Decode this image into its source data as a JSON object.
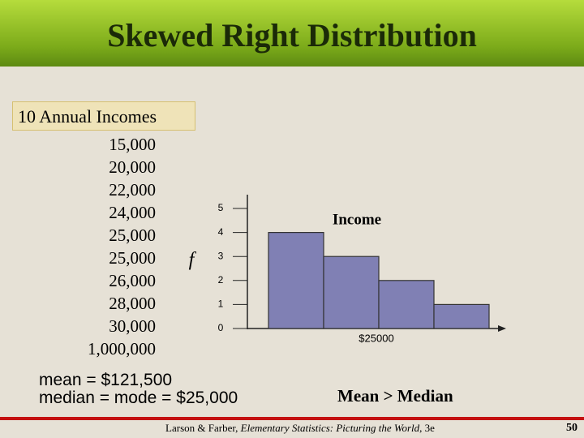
{
  "header": {
    "title": "Skewed Right Distribution"
  },
  "list": {
    "heading": "10 Annual Incomes",
    "items": [
      "15,000",
      "20,000",
      "22,000",
      "24,000",
      "25,000",
      "25,000",
      "26,000",
      "28,000",
      "30,000",
      "1,000,000"
    ]
  },
  "summary": [
    "mean = $121,500",
    "median = mode = $25,000"
  ],
  "comparison": "Mean > Median",
  "footer": {
    "authors": "Larson & Farber,",
    "book": "Elementary Statistics: Picturing the World",
    "edition": ", 3e",
    "page": "50"
  },
  "chart_data": {
    "type": "bar",
    "title": "Income",
    "y_label": "f",
    "x_label": "$25000",
    "categories": [
      null,
      null,
      null,
      null
    ],
    "values": [
      4,
      3,
      2,
      1
    ],
    "color": "#8080b4",
    "ylim": [
      0,
      5
    ],
    "yticks": [
      0,
      1,
      2,
      3,
      4,
      5
    ]
  }
}
